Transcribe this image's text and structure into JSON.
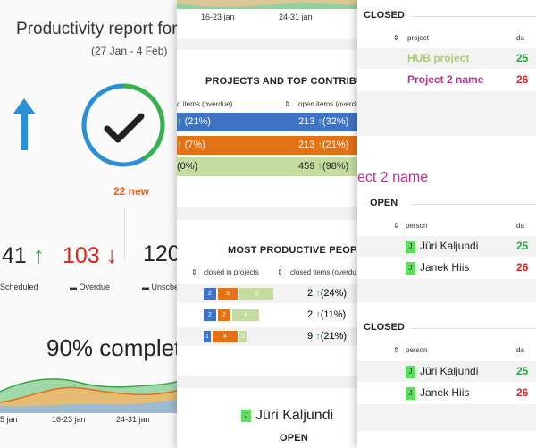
{
  "colors": {
    "blue": "#3f73c3",
    "orange": "#e37215",
    "lightgreen": "#c5dca0",
    "green": "#27a844",
    "red": "#d9261c",
    "magenta": "#b5338a",
    "new_orange": "#e8601a"
  },
  "report": {
    "title": "Productivity report for C",
    "date_range": "(27 Jan - 4 Feb)",
    "new_label": "22 new",
    "stats": [
      {
        "value": "41",
        "label": "Scheduled",
        "icon": "folder-icon",
        "trend": "up"
      },
      {
        "value": "103",
        "label": "Overdue",
        "icon": "folder-icon",
        "trend": "down"
      },
      {
        "value": "120",
        "label": "Unsche",
        "icon": "folder-icon"
      }
    ],
    "complete_label": "90% complet",
    "axis_labels": [
      "5 jan",
      "16-23 jan",
      "24-31 jan"
    ]
  },
  "middle": {
    "top_axis": [
      "16-23 jan",
      "24-31 jan"
    ],
    "projects_title": "PROJECTS AND TOP CONTRIBUT",
    "projects_headers": [
      "d items (overdue)",
      "open items (overdu"
    ],
    "projects_rows": [
      {
        "left": "(21%)",
        "open": "213",
        "open_pct": "(32%)",
        "bg": "#3f73c3",
        "fg": "#fff",
        "arrow": "up"
      },
      {
        "left": "(7%)",
        "open": "213",
        "open_pct": "(21%)",
        "bg": "#e37215",
        "fg": "#fff",
        "arrow": "up"
      },
      {
        "left": "(0%)",
        "open": "459",
        "open_pct": "(98%)",
        "bg": "#c5dca0",
        "fg": "#222",
        "arrow": "up"
      }
    ],
    "productive_title": "MOST PRODUCTIVE PEOPL",
    "productive_headers": [
      "closed in projects",
      "closed items (overdu"
    ],
    "productive_rows": [
      {
        "segs": [
          "2",
          "3",
          "5"
        ],
        "value": "2",
        "pct": "(24%)"
      },
      {
        "segs": [
          "2",
          "2",
          "4"
        ],
        "value": "2",
        "pct": "(11%)"
      },
      {
        "segs": [
          "1",
          "4",
          "1"
        ],
        "value": "9",
        "pct": "(21%)"
      }
    ],
    "person": {
      "initial": "J",
      "name": "Jüri Kaljundi",
      "section": "OPEN"
    }
  },
  "right": {
    "closed1": {
      "title": "CLOSED",
      "headers": [
        "project",
        "da"
      ],
      "rows": [
        {
          "name": "HUB project",
          "val": "25",
          "color": "#a9cf6f",
          "valcolor": "#27a844"
        },
        {
          "name": "Project 2 name",
          "val": "26",
          "color": "#b5338a",
          "valcolor": "#d9261c"
        }
      ]
    },
    "project_heading": "ect 2 name",
    "open": {
      "title": "OPEN",
      "headers": [
        "person",
        "da"
      ],
      "rows": [
        {
          "name": "Jüri Kaljundi",
          "initial": "J",
          "val": "25",
          "valcolor": "#27a844"
        },
        {
          "name": "Janek Hiis",
          "initial": "J",
          "val": "26",
          "valcolor": "#d9261c"
        }
      ]
    },
    "closed2": {
      "title": "CLOSED",
      "headers": [
        "person",
        "da"
      ],
      "rows": [
        {
          "name": "Jüri Kaljundi",
          "initial": "J",
          "val": "25",
          "valcolor": "#27a844"
        },
        {
          "name": "Janek Hiis",
          "initial": "J",
          "val": "26",
          "valcolor": "#d9261c"
        }
      ]
    }
  }
}
